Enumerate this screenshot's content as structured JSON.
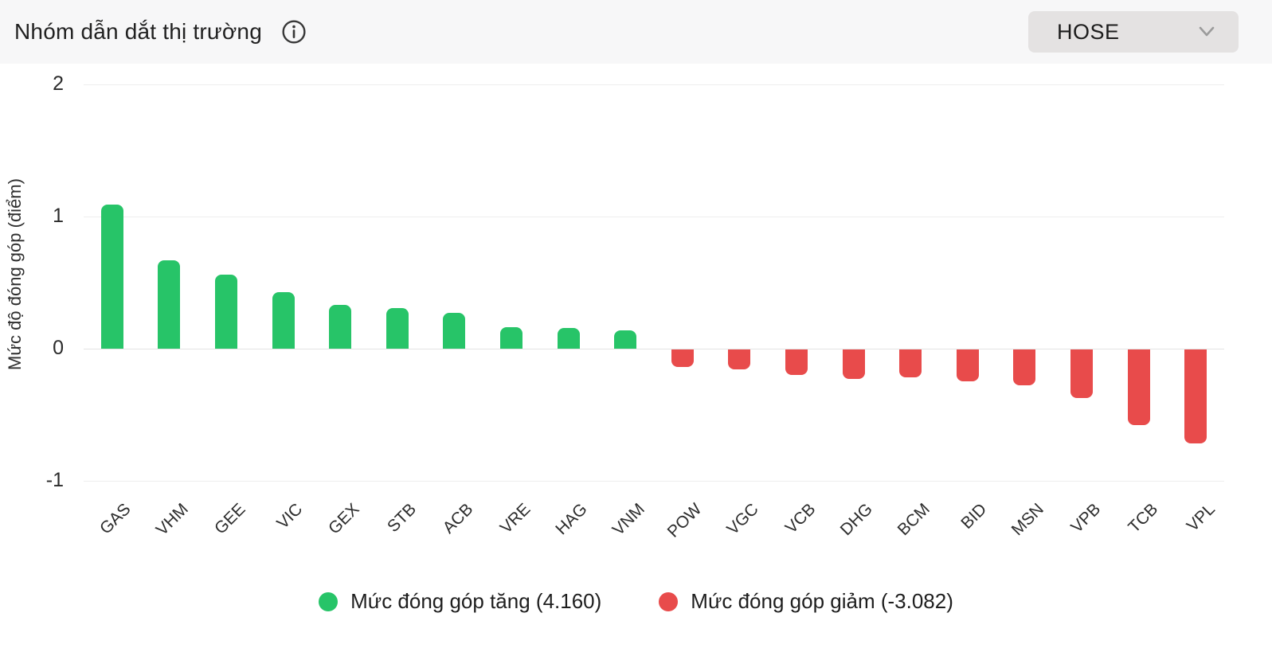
{
  "header": {
    "title": "Nhóm dẫn dắt thị trường",
    "info_icon": "info-circle",
    "exchange_selector": {
      "value": "HOSE",
      "chevron_icon": "chevron-down"
    }
  },
  "chart_data": {
    "type": "bar",
    "categories": [
      "GAS",
      "VHM",
      "GEE",
      "VIC",
      "GEX",
      "STB",
      "ACB",
      "VRE",
      "HAG",
      "VNM",
      "POW",
      "VGC",
      "VCB",
      "DHG",
      "BCM",
      "BID",
      "MSN",
      "VPB",
      "TCB",
      "VPL"
    ],
    "values": [
      1.09,
      0.67,
      0.56,
      0.43,
      0.33,
      0.31,
      0.27,
      0.16,
      0.155,
      0.14,
      -0.13,
      -0.15,
      -0.19,
      -0.22,
      -0.21,
      -0.24,
      -0.27,
      -0.37,
      -0.57,
      -0.71
    ],
    "title": "",
    "xlabel": "",
    "ylabel": "Mức độ đóng góp (điểm)",
    "yticks": [
      2,
      1,
      0,
      -1
    ],
    "ylim": [
      -1.07,
      2.16
    ],
    "grid": true,
    "legend_position": "bottom",
    "colors": {
      "positive": "#27c468",
      "negative": "#e84b4b"
    },
    "legend": [
      {
        "label": "Mức đóng góp tăng (4.160)",
        "color": "#27c468"
      },
      {
        "label": "Mức đóng góp giảm (-3.082)",
        "color": "#e84b4b"
      }
    ]
  }
}
